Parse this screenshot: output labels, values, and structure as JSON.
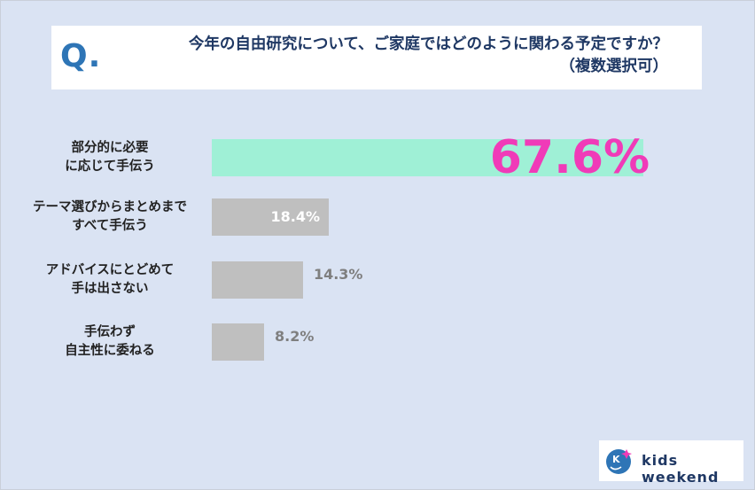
{
  "question": {
    "marker": "Q.",
    "line1": "今年の自由研究について、ご家庭ではどのように関わる予定ですか？",
    "line2": "（複数選択可）"
  },
  "chart_data": {
    "type": "bar",
    "orientation": "horizontal",
    "categories": [
      [
        "部分的に必要",
        "に応じて手伝う"
      ],
      [
        "テーマ選びからまとめまで",
        "すべて手伝う"
      ],
      [
        "アドバイスにとどめて",
        "手は出さない"
      ],
      [
        "手伝わず",
        "自主性に委ねる"
      ]
    ],
    "values": [
      67.6,
      18.4,
      14.3,
      8.2
    ],
    "labels": [
      "67.6%",
      "18.4%",
      "14.3%",
      "8.2%"
    ],
    "xlim": [
      0,
      100
    ],
    "grid": false,
    "legend": "none",
    "colors": {
      "highlight_bar": "#9ff0d6",
      "bar": "#bfbfbf",
      "highlight_label": "#f03bb8",
      "inside_label": "#ffffff",
      "outside_label": "#7f7f7f"
    }
  },
  "logo": {
    "text": "kids weekend",
    "icon": "kids-weekend-logo-icon",
    "icon_letter": "K"
  }
}
